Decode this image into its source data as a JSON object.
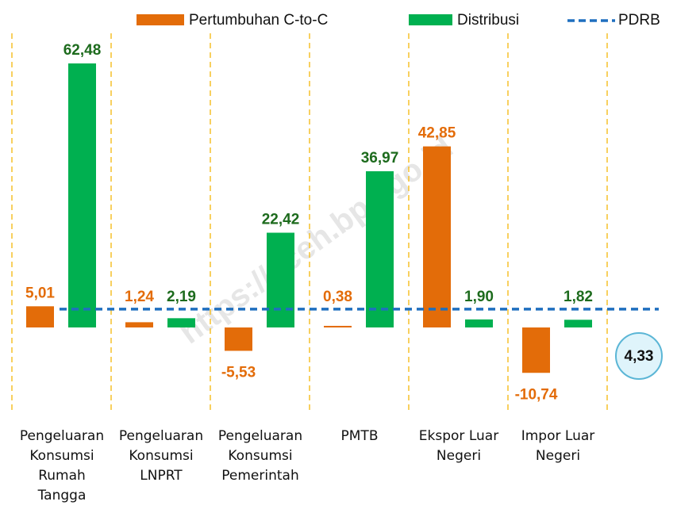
{
  "chart_data": {
    "type": "bar",
    "categories": [
      "Pengeluaran\nKonsumsi\nRumah\nTangga",
      "Pengeluaran\nKonsumsi\nLNPRT",
      "Pengeluaran\nKonsumsi\nPemerintah",
      "PMTB",
      "Ekspor Luar\nNegeri",
      "Impor Luar\nNegeri"
    ],
    "series": [
      {
        "name": "Pertumbuhan C-to-C",
        "color": "#e36c09",
        "label_color": "#e36c09",
        "values": [
          5.01,
          1.24,
          -5.53,
          0.38,
          42.85,
          -10.74
        ],
        "value_labels": [
          "5,01",
          "1,24",
          "-5,53",
          "0,38",
          "42,85",
          "-10,74"
        ]
      },
      {
        "name": "Distribusi",
        "color": "#00b050",
        "label_color": "#1d6b1d",
        "values": [
          62.48,
          2.19,
          22.42,
          36.97,
          1.9,
          1.82
        ],
        "value_labels": [
          "62,48",
          "2,19",
          "22,42",
          "36,97",
          "1,90",
          "1,82"
        ]
      }
    ],
    "reference": {
      "name": "PDRB",
      "value": 4.33,
      "value_label": "4,33",
      "color": "#1f6fbf"
    },
    "watermark": "https://aceh.bps.go.id"
  }
}
